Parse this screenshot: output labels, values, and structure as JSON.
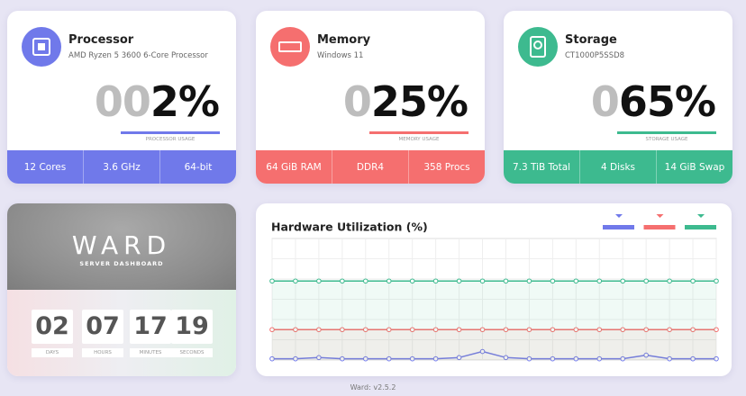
{
  "cards": [
    {
      "title": "Processor",
      "subtitle": "AMD Ryzen 5 3600 6-Core Processor",
      "usage_pad": "00",
      "usage": "2%",
      "usage_label": "PROCESSOR USAGE",
      "color": "#7079ea",
      "stats": [
        "12 Cores",
        "3.6 GHz",
        "64-bit"
      ]
    },
    {
      "title": "Memory",
      "subtitle": "Windows 11",
      "usage_pad": "0",
      "usage": "25%",
      "usage_label": "MEMORY USAGE",
      "color": "#f56f6f",
      "stats": [
        "64 GiB RAM",
        "DDR4",
        "358 Procs"
      ]
    },
    {
      "title": "Storage",
      "subtitle": "CT1000P5SSD8",
      "usage_pad": "0",
      "usage": "65%",
      "usage_label": "STORAGE USAGE",
      "color": "#3dba8f",
      "stats": [
        "7.3 TiB Total",
        "4 Disks",
        "14 GiB Swap"
      ]
    }
  ],
  "ward": {
    "title": "WARD",
    "subtitle": "SERVER DASHBOARD",
    "uptime": [
      {
        "value": "02",
        "label": "DAYS"
      },
      {
        "value": "07",
        "label": "HOURS"
      },
      {
        "value": "17",
        "label": "MINUTES"
      },
      {
        "value": "19",
        "label": "SECONDS"
      }
    ]
  },
  "chart_data": {
    "type": "line",
    "title": "Hardware Utilization (%)",
    "categories": [
      null,
      null,
      null,
      null,
      null,
      null,
      null,
      null,
      null,
      null,
      null,
      null,
      null,
      null,
      null,
      null,
      null,
      null,
      null,
      null
    ],
    "series": [
      {
        "color": "#7079ea",
        "values": [
          1,
          1,
          2,
          1,
          1,
          1,
          1,
          1,
          2,
          7,
          2,
          1,
          1,
          1,
          1,
          1,
          4,
          1,
          1,
          1
        ]
      },
      {
        "color": "#f56f6f",
        "values": [
          25,
          25,
          25,
          25,
          25,
          25,
          25,
          25,
          25,
          25,
          25,
          25,
          25,
          25,
          25,
          25,
          25,
          25,
          25,
          25
        ]
      },
      {
        "color": "#3dba8f",
        "values": [
          65,
          65,
          65,
          65,
          65,
          65,
          65,
          65,
          65,
          65,
          65,
          65,
          65,
          65,
          65,
          65,
          65,
          65,
          65,
          65
        ]
      }
    ],
    "ylim": [
      0,
      100
    ],
    "grid": true
  },
  "footer": "Ward: v2.5.2"
}
